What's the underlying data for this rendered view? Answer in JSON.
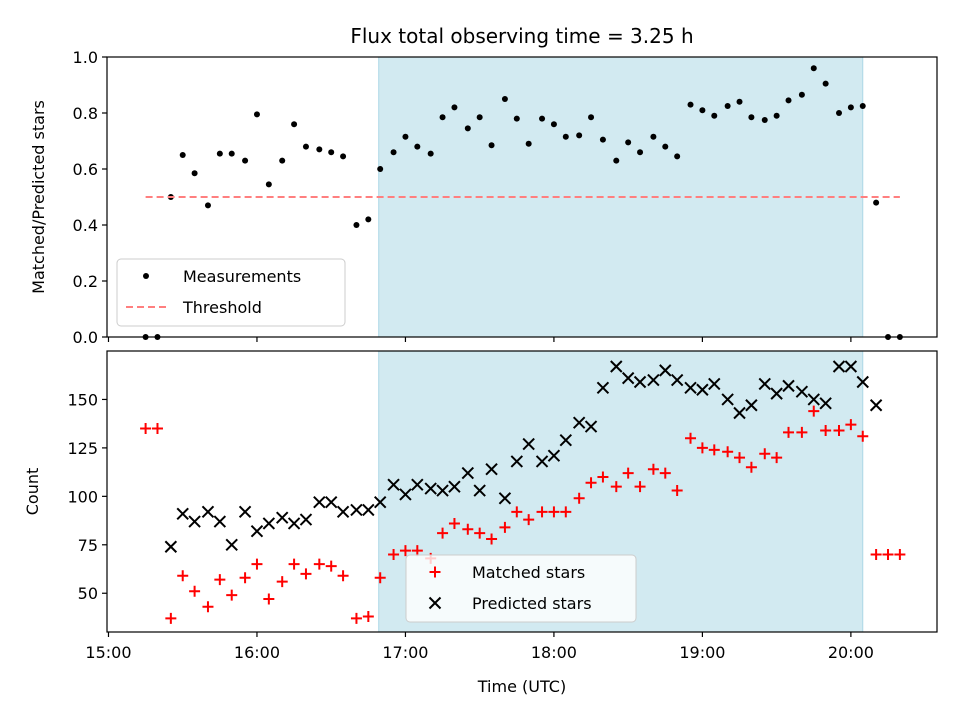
{
  "chart_data": {
    "title": "Flux total observing time = 3.25 h",
    "xlabel": "Time (UTC)",
    "x_ticks": [
      "15:00",
      "16:00",
      "17:00",
      "18:00",
      "19:00",
      "20:00"
    ],
    "x_tick_hours": [
      15,
      16,
      17,
      18,
      19,
      20
    ],
    "xlim_hours": [
      14.99,
      20.58
    ],
    "shaded_span_hours": [
      16.82,
      20.08
    ],
    "shade_color": "#add8e6",
    "panels": [
      {
        "type": "scatter",
        "ylabel": "Matched/Predicted stars",
        "ylim": [
          0.0,
          1.0
        ],
        "y_ticks": [
          "0.0",
          "0.2",
          "0.4",
          "0.6",
          "0.8",
          "1.0"
        ],
        "y_tick_values": [
          0.0,
          0.2,
          0.4,
          0.6,
          0.8,
          1.0
        ],
        "legend_position": "lower-left",
        "series": [
          {
            "name": "Measurements",
            "marker": "dot",
            "color": "#000000",
            "x_hours": [
              15.25,
              15.33,
              15.42,
              15.5,
              15.58,
              15.67,
              15.75,
              15.83,
              15.92,
              16.0,
              16.08,
              16.17,
              16.25,
              16.33,
              16.42,
              16.5,
              16.58,
              16.67,
              16.75,
              16.83,
              16.92,
              17.0,
              17.08,
              17.17,
              17.25,
              17.33,
              17.42,
              17.5,
              17.58,
              17.67,
              17.75,
              17.83,
              17.92,
              18.0,
              18.08,
              18.17,
              18.25,
              18.33,
              18.42,
              18.5,
              18.58,
              18.67,
              18.75,
              18.83,
              18.92,
              19.0,
              19.08,
              19.17,
              19.25,
              19.33,
              19.42,
              19.5,
              19.58,
              19.67,
              19.75,
              19.83,
              19.92,
              20.0,
              20.08,
              20.17,
              20.25,
              20.33
            ],
            "y": [
              0.0,
              0.0,
              0.5,
              0.65,
              0.585,
              0.47,
              0.655,
              0.655,
              0.63,
              0.795,
              0.545,
              0.63,
              0.76,
              0.68,
              0.67,
              0.66,
              0.645,
              0.4,
              0.42,
              0.6,
              0.66,
              0.715,
              0.68,
              0.655,
              0.785,
              0.82,
              0.745,
              0.785,
              0.685,
              0.85,
              0.78,
              0.69,
              0.78,
              0.76,
              0.715,
              0.72,
              0.785,
              0.705,
              0.63,
              0.695,
              0.66,
              0.715,
              0.68,
              0.645,
              0.83,
              0.81,
              0.79,
              0.825,
              0.84,
              0.785,
              0.775,
              0.79,
              0.845,
              0.865,
              0.96,
              0.905,
              0.8,
              0.82,
              0.825,
              0.48,
              0.0,
              0.0
            ]
          },
          {
            "name": "Threshold",
            "marker": "dashed-line",
            "color": "#ff7f7f",
            "x_hours": [
              15.25,
              20.33
            ],
            "y": [
              0.5,
              0.5
            ]
          }
        ]
      },
      {
        "type": "scatter",
        "ylabel": "Count",
        "ylim": [
          30,
          175
        ],
        "y_ticks": [
          "50",
          "75",
          "100",
          "125",
          "150"
        ],
        "y_tick_values": [
          50,
          75,
          100,
          125,
          150
        ],
        "legend_position": "lower-center",
        "series": [
          {
            "name": "Matched stars",
            "marker": "plus",
            "color": "#ff0000",
            "x_hours": [
              15.25,
              15.33,
              15.42,
              15.5,
              15.58,
              15.67,
              15.75,
              15.83,
              15.92,
              16.0,
              16.08,
              16.17,
              16.25,
              16.33,
              16.42,
              16.5,
              16.58,
              16.67,
              16.75,
              16.83,
              16.92,
              17.0,
              17.08,
              17.17,
              17.25,
              17.33,
              17.42,
              17.5,
              17.58,
              17.67,
              17.75,
              17.83,
              17.92,
              18.0,
              18.08,
              18.17,
              18.25,
              18.33,
              18.42,
              18.5,
              18.58,
              18.67,
              18.75,
              18.83,
              18.92,
              19.0,
              19.08,
              19.17,
              19.25,
              19.33,
              19.42,
              19.5,
              19.58,
              19.67,
              19.75,
              19.83,
              19.92,
              20.0,
              20.08,
              20.17,
              20.25,
              20.33
            ],
            "y": [
              135,
              135,
              37,
              59,
              51,
              43,
              57,
              49,
              58,
              65,
              47,
              56,
              65,
              60,
              65,
              64,
              59,
              37,
              38,
              58,
              70,
              72,
              72,
              68,
              81,
              86,
              83,
              81,
              78,
              84,
              92,
              88,
              92,
              92,
              92,
              99,
              107,
              110,
              105,
              112,
              105,
              114,
              112,
              103,
              130,
              125,
              124,
              123,
              120,
              115,
              122,
              120,
              133,
              133,
              144,
              134,
              134,
              137,
              131,
              70,
              70,
              70
            ]
          },
          {
            "name": "Predicted stars",
            "marker": "x",
            "color": "#000000",
            "x_hours": [
              15.42,
              15.5,
              15.58,
              15.67,
              15.75,
              15.83,
              15.92,
              16.0,
              16.08,
              16.17,
              16.25,
              16.33,
              16.42,
              16.5,
              16.58,
              16.67,
              16.75,
              16.83,
              16.92,
              17.0,
              17.08,
              17.17,
              17.25,
              17.33,
              17.42,
              17.5,
              17.58,
              17.67,
              17.75,
              17.83,
              17.92,
              18.0,
              18.08,
              18.17,
              18.25,
              18.33,
              18.42,
              18.5,
              18.58,
              18.67,
              18.75,
              18.83,
              18.92,
              19.0,
              19.08,
              19.17,
              19.25,
              19.33,
              19.42,
              19.5,
              19.58,
              19.67,
              19.75,
              19.83,
              19.92,
              20.0,
              20.08,
              20.17
            ],
            "y": [
              74,
              91,
              87,
              92,
              87,
              75,
              92,
              82,
              86,
              89,
              86,
              88,
              97,
              97,
              92,
              93,
              93,
              97,
              106,
              101,
              106,
              104,
              103,
              105,
              112,
              103,
              114,
              99,
              118,
              127,
              118,
              121,
              129,
              138,
              136,
              156,
              167,
              161,
              159,
              160,
              165,
              160,
              156,
              155,
              158,
              150,
              143,
              147,
              158,
              153,
              157,
              154,
              150,
              148,
              167,
              167,
              159,
              147
            ]
          }
        ]
      }
    ]
  }
}
